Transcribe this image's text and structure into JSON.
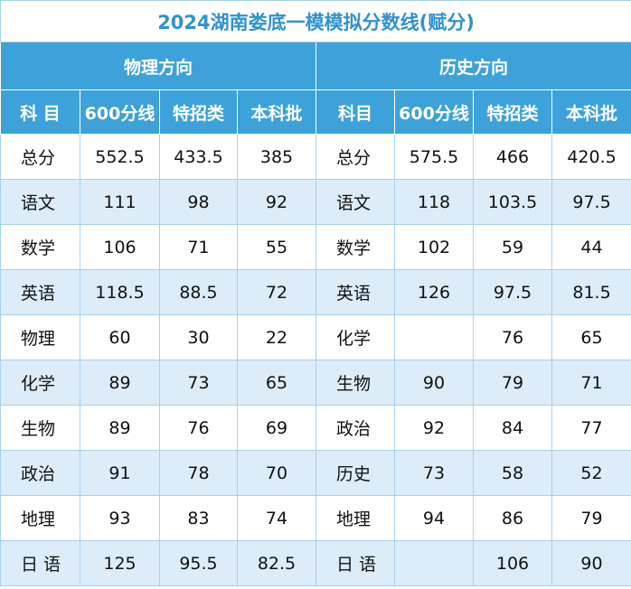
{
  "table": {
    "title": "2024湖南娄底一模模拟分数线(赋分)",
    "groups": [
      "物理方向",
      "历史方向"
    ],
    "columns": [
      "科 目",
      "600分线",
      "特招类",
      "本科批",
      "科目",
      "600分线",
      "特招类",
      "本科批"
    ],
    "rows": [
      [
        "总分",
        552.5,
        433.5,
        385,
        "总分",
        575.5,
        466,
        420.5
      ],
      [
        "语文",
        111,
        98,
        92,
        "语文",
        118,
        103.5,
        97.5
      ],
      [
        "数学",
        106,
        71,
        55,
        "数学",
        102,
        59,
        44
      ],
      [
        "英语",
        118.5,
        88.5,
        72,
        "英语",
        126,
        97.5,
        81.5
      ],
      [
        "物理",
        60,
        30,
        22,
        "化学",
        null,
        76,
        65
      ],
      [
        "化学",
        89,
        73,
        65,
        "生物",
        90,
        79,
        71
      ],
      [
        "生物",
        89,
        76,
        69,
        "政治",
        92,
        84,
        77
      ],
      [
        "政治",
        91,
        78,
        70,
        "历史",
        73,
        58,
        52
      ],
      [
        "地理",
        93,
        83,
        74,
        "地理",
        94,
        86,
        79
      ],
      [
        "日 语",
        125,
        95.5,
        82.5,
        "日 语",
        null,
        106,
        90
      ]
    ]
  }
}
